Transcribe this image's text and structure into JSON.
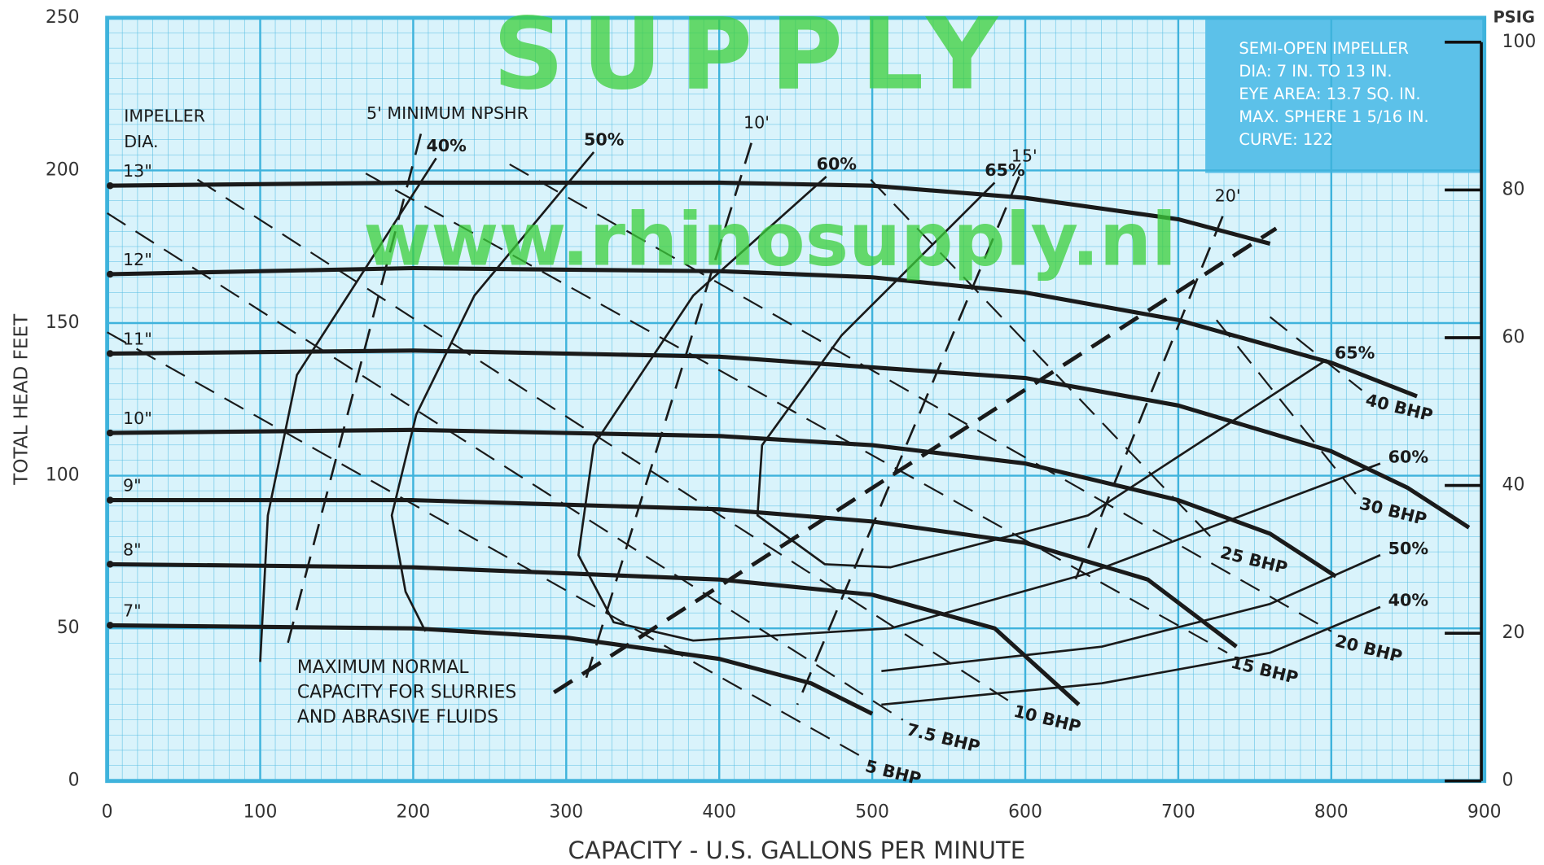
{
  "chart_data": {
    "type": "line",
    "watermark": "SUPPLY",
    "watermark_url": "www.rhinosupply.nl",
    "x_label": "CAPACITY - U.S. GALLONS PER MINUTE",
    "y_label": "TOTAL HEAD FEET",
    "y2_label": "PSIG",
    "xlim": [
      0,
      900
    ],
    "xticks": [
      0,
      100,
      200,
      300,
      400,
      500,
      600,
      700,
      800,
      900
    ],
    "ylim": [
      0,
      250
    ],
    "yticks": [
      0,
      50,
      100,
      150,
      200,
      250
    ],
    "y2lim": [
      0,
      103.3
    ],
    "y2ticks": [
      0,
      20,
      40,
      60,
      80,
      100
    ],
    "grid": true,
    "background": "#d9f3fb",
    "grid_color": "#3fb3dc",
    "line_color": "#1a1a1a",
    "info_box_color": "#5cc1e9",
    "watermark_color": "#3ccf3c",
    "info_box": [
      "SEMI-OPEN IMPELLER",
      "DIA: 7 IN. TO 13 IN.",
      "EYE AREA: 13.7 SQ. IN.",
      "MAX. SPHERE 1 5/16 IN.",
      "CURVE: 122"
    ],
    "impeller_legend_title": [
      "IMPELLER",
      "DIA."
    ],
    "series": [
      {
        "name": "13\"",
        "x": [
          0,
          200,
          400,
          500,
          600,
          700,
          760
        ],
        "values": [
          195,
          196,
          196,
          195,
          191,
          184,
          176
        ]
      },
      {
        "name": "12\"",
        "x": [
          0,
          200,
          400,
          500,
          600,
          700,
          800,
          856
        ],
        "values": [
          166,
          168,
          167,
          165,
          160,
          151,
          137,
          126
        ]
      },
      {
        "name": "11\"",
        "x": [
          0,
          200,
          400,
          600,
          700,
          800,
          850,
          890
        ],
        "values": [
          140,
          141,
          139,
          132,
          123,
          108,
          96,
          83
        ]
      },
      {
        "name": "10\"",
        "x": [
          0,
          200,
          400,
          500,
          600,
          700,
          760,
          803
        ],
        "values": [
          114,
          115,
          113,
          110,
          104,
          92,
          81,
          67
        ]
      },
      {
        "name": "9\"",
        "x": [
          0,
          200,
          400,
          500,
          600,
          680,
          738
        ],
        "values": [
          92,
          92,
          89,
          85,
          78,
          66,
          44
        ]
      },
      {
        "name": "8\"",
        "x": [
          0,
          200,
          400,
          500,
          580,
          635
        ],
        "values": [
          71,
          70,
          66,
          61,
          50,
          25
        ]
      },
      {
        "name": "7\"",
        "x": [
          0,
          200,
          300,
          400,
          460,
          500
        ],
        "values": [
          51,
          50,
          47,
          40,
          32,
          22
        ]
      }
    ],
    "efficiency_series": [
      {
        "name": "40%",
        "x": [
          215,
          124,
          105,
          100,
          null,
          506,
          650,
          760,
          832
        ],
        "values": [
          204,
          133,
          87,
          39,
          null,
          25,
          32,
          42,
          57
        ]
      },
      {
        "name": "50%",
        "x": [
          318,
          240,
          202,
          186,
          195,
          208,
          null,
          506,
          650,
          760,
          832
        ],
        "values": [
          206,
          159,
          120,
          87,
          62,
          49,
          null,
          36,
          44,
          58,
          74
        ]
      },
      {
        "name": "60%",
        "x": [
          470,
          383,
          318,
          308,
          331,
          383,
          512,
          641,
          832
        ],
        "values": [
          198,
          159,
          110,
          74,
          52,
          46,
          50,
          68,
          104
        ]
      },
      {
        "name": "65%",
        "x": [
          580,
          480,
          428,
          425,
          469,
          512,
          641,
          797
        ],
        "values": [
          196,
          146,
          110,
          87,
          71,
          70,
          87,
          138
        ]
      }
    ],
    "power_series": [
      {
        "name": "5 BHP",
        "x": [
          0,
          493
        ],
        "values": [
          147,
          8
        ]
      },
      {
        "name": "7.5 BHP",
        "x": [
          0,
          520
        ],
        "values": [
          186,
          20
        ]
      },
      {
        "name": "10 BHP",
        "x": [
          59,
          590
        ],
        "values": [
          197,
          26
        ]
      },
      {
        "name": "15 BHP",
        "x": [
          169,
          732
        ],
        "values": [
          199,
          42
        ]
      },
      {
        "name": "20 BHP",
        "x": [
          263,
          800
        ],
        "values": [
          202,
          49
        ]
      },
      {
        "name": "25 BHP",
        "x": [
          499,
          725
        ],
        "values": [
          197,
          78
        ]
      },
      {
        "name": "30 BHP",
        "x": [
          725,
          816
        ],
        "values": [
          151,
          94
        ]
      },
      {
        "name": "40 BHP",
        "x": [
          760,
          820
        ],
        "values": [
          152,
          128
        ]
      }
    ],
    "power_line_style": "dashed",
    "npsh_series": [
      {
        "name": "5' MINIMUM NPSHR",
        "x": [
          205,
          118
        ],
        "values": [
          212,
          45
        ]
      },
      {
        "name": "10'",
        "x": [
          421,
          312
        ],
        "values": [
          209,
          32
        ]
      },
      {
        "name": "15'",
        "x": [
          596,
          451
        ],
        "values": [
          198,
          25
        ]
      },
      {
        "name": "20'",
        "x": [
          729,
          632
        ],
        "values": [
          185,
          65
        ]
      }
    ],
    "npsh_line_style": "dashed",
    "capacity_limit": {
      "label_lines": [
        "MAXIMUM NORMAL",
        "CAPACITY FOR SLURRIES",
        "AND ABRASIVE FLUIDS"
      ],
      "x": [
        292,
        764
      ],
      "values": [
        29,
        181
      ]
    },
    "capacity_line_style": "dashed"
  }
}
